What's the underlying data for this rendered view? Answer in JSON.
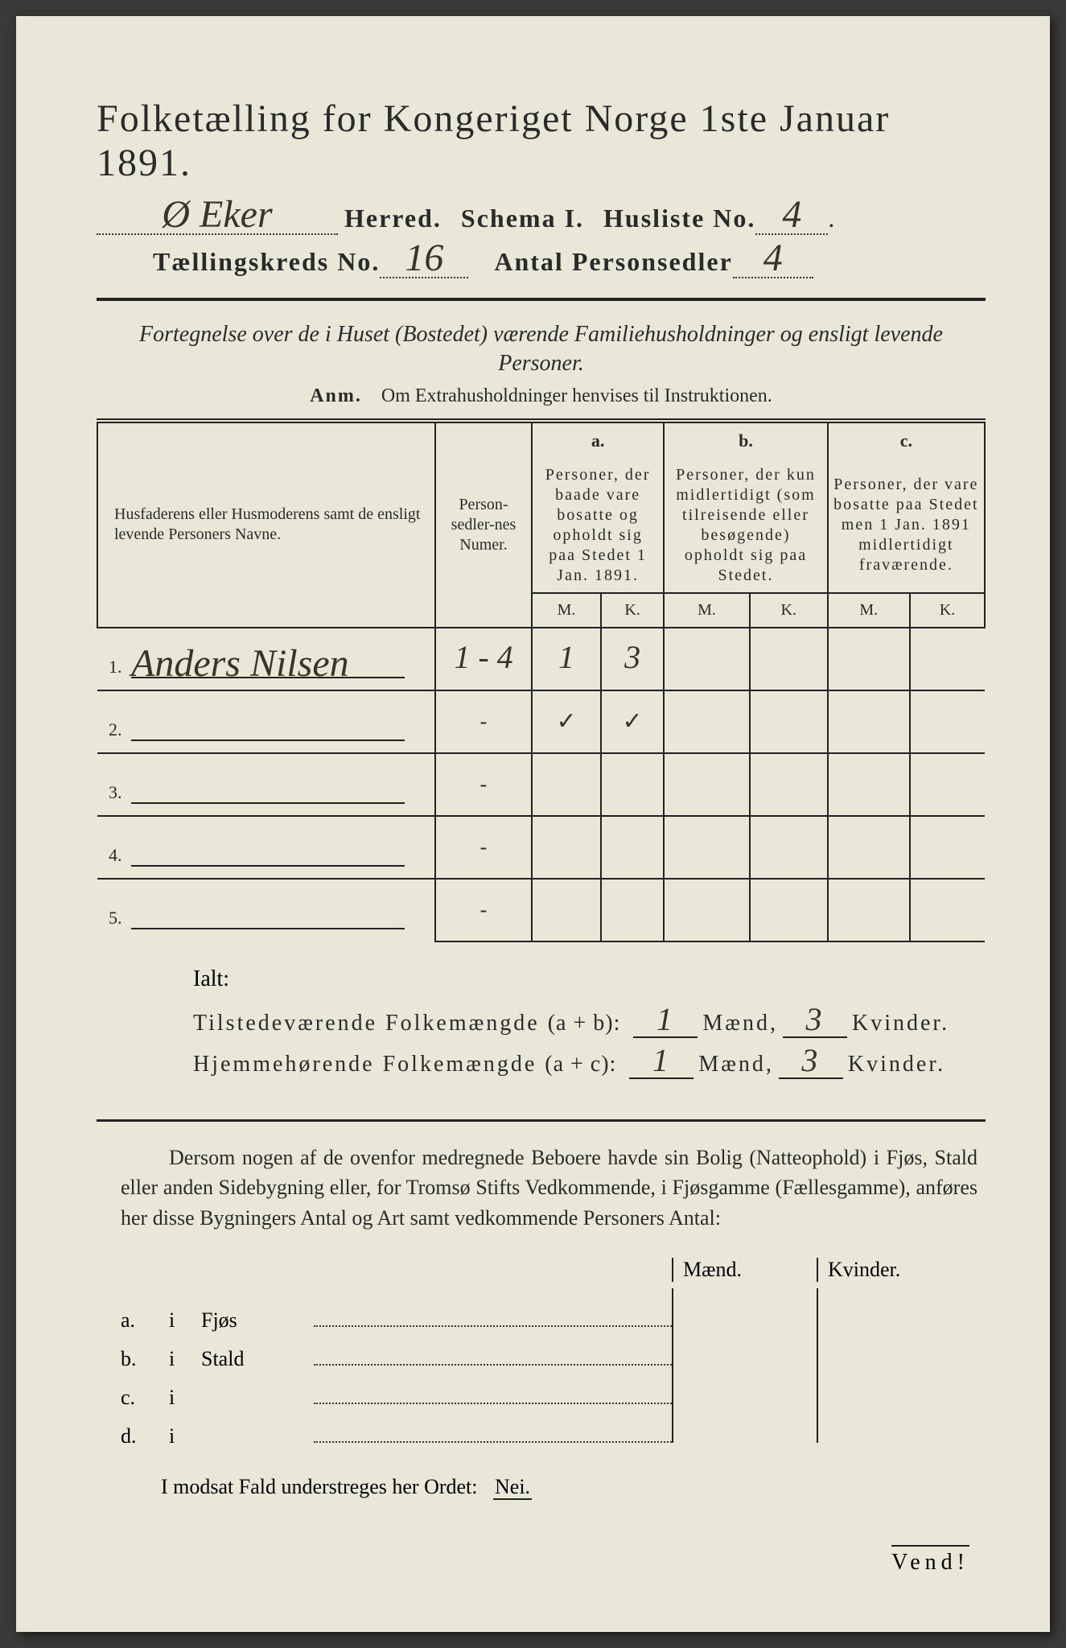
{
  "colors": {
    "paper": "#e9e8d8",
    "ink": "#2a2a2a",
    "handwriting": "#3a3424",
    "outer": "#3a3a38"
  },
  "header": {
    "title": "Folketælling for Kongeriget Norge 1ste Januar 1891.",
    "herred_value": "Ø Eker",
    "herred_label": "Herred.",
    "schema_label": "Schema I.",
    "husliste_label": "Husliste No.",
    "husliste_value": "4",
    "kreds_label": "Tællingskreds No.",
    "kreds_value": "16",
    "antal_label": "Antal Personsedler",
    "antal_value": "4"
  },
  "fortegnelse": "Fortegnelse over de i Huset (Bostedet) værende Familiehusholdninger og ensligt levende Personer.",
  "anm_label": "Anm.",
  "anm_text": "Om Extrahusholdninger henvises til Instruktionen.",
  "table": {
    "col_names": "Husfaderens eller Husmoderens samt de ensligt levende Personers Navne.",
    "col_num": "Person-sedler-nes Numer.",
    "col_a_letter": "a.",
    "col_a": "Personer, der baade vare bosatte og opholdt sig paa Stedet 1 Jan. 1891.",
    "col_b_letter": "b.",
    "col_b": "Personer, der kun midlertidigt (som tilreisende eller besøgende) opholdt sig paa Stedet.",
    "col_c_letter": "c.",
    "col_c": "Personer, der vare bosatte paa Stedet men 1 Jan. 1891 midlertidigt fraværende.",
    "m": "M.",
    "k": "K.",
    "rows": [
      {
        "no": "1.",
        "name": "Anders Nilsen",
        "num": "1 - 4",
        "a_m": "1",
        "a_k": "3",
        "b_m": "",
        "b_k": "",
        "c_m": "",
        "c_k": ""
      },
      {
        "no": "2.",
        "name": "",
        "num": "-",
        "a_m": "✓",
        "a_k": "✓",
        "b_m": "",
        "b_k": "",
        "c_m": "",
        "c_k": ""
      },
      {
        "no": "3.",
        "name": "",
        "num": "-",
        "a_m": "",
        "a_k": "",
        "b_m": "",
        "b_k": "",
        "c_m": "",
        "c_k": ""
      },
      {
        "no": "4.",
        "name": "",
        "num": "-",
        "a_m": "",
        "a_k": "",
        "b_m": "",
        "b_k": "",
        "c_m": "",
        "c_k": ""
      },
      {
        "no": "5.",
        "name": "",
        "num": "-",
        "a_m": "",
        "a_k": "",
        "b_m": "",
        "b_k": "",
        "c_m": "",
        "c_k": ""
      }
    ]
  },
  "totals": {
    "ialt": "Ialt:",
    "tilstede_label": "Tilstedeværende Folkemængde",
    "tilstede_expr": "(a + b):",
    "hjemme_label": "Hjemmehørende Folkemængde",
    "hjemme_expr": "(a + c):",
    "maend": "Mænd,",
    "kvinder": "Kvinder.",
    "tilstede_m": "1",
    "tilstede_k": "3",
    "hjemme_m": "1",
    "hjemme_k": "3"
  },
  "dersom": "Dersom nogen af de ovenfor medregnede Beboere havde sin Bolig (Natteophold) i Fjøs, Stald eller anden Sidebygning eller, for Tromsø Stifts Vedkommende, i Fjøsgamme (Fællesgamme), anføres her disse Bygningers Antal og Art samt vedkommende Personers Antal:",
  "bygning": {
    "maend": "Mænd.",
    "kvinder": "Kvinder.",
    "rows": [
      {
        "lab": "a.",
        "i": "i",
        "type": "Fjøs"
      },
      {
        "lab": "b.",
        "i": "i",
        "type": "Stald"
      },
      {
        "lab": "c.",
        "i": "i",
        "type": ""
      },
      {
        "lab": "d.",
        "i": "i",
        "type": ""
      }
    ]
  },
  "modsat": "I modsat Fald understreges her Ordet:",
  "nei": "Nei.",
  "vend": "Vend!"
}
